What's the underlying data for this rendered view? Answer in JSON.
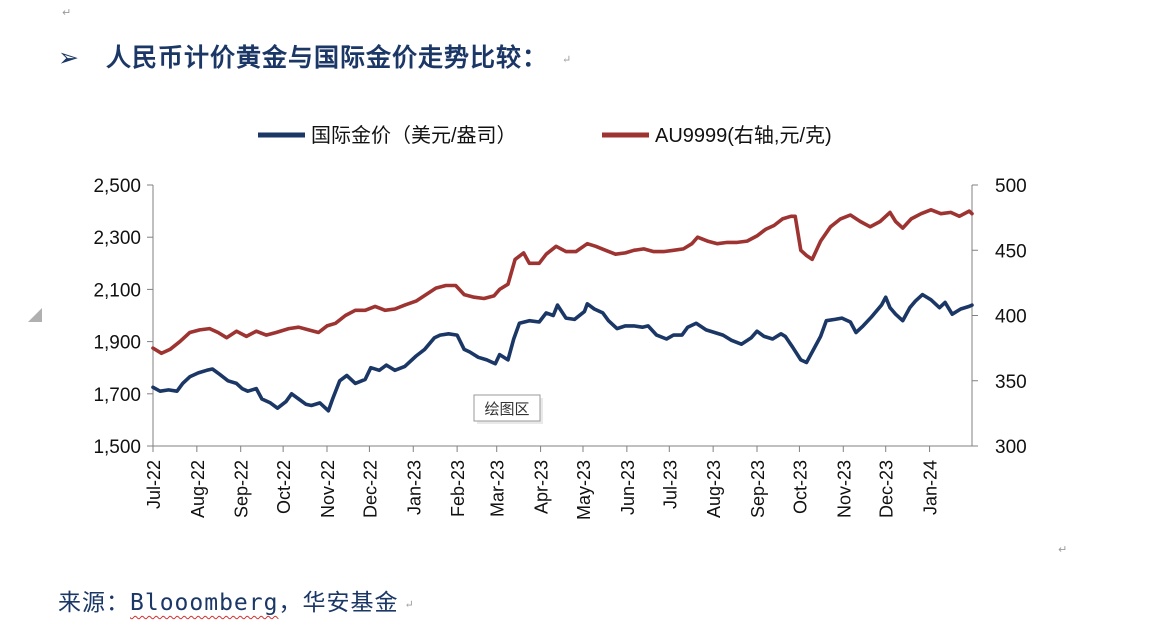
{
  "heading": {
    "bullet": "➢",
    "title": "人民币计价黄金与国际金价走势比较："
  },
  "source": {
    "prefix": "来源：",
    "brand": "Blooomberg",
    "suffix": "，华安基金"
  },
  "marks": {
    "paragraph": "↵"
  },
  "tooltip": {
    "label": "绘图区"
  },
  "chart_data": {
    "type": "line",
    "title": "",
    "xlabel": "",
    "ylabel": "",
    "legend_position": "top",
    "grid": false,
    "x_range": [
      "2022-07-01",
      "2024-01-31"
    ],
    "xticks": [
      "Jul-22",
      "Aug-22",
      "Sep-22",
      "Oct-22",
      "Nov-22",
      "Dec-22",
      "Jan-23",
      "Feb-23",
      "Mar-23",
      "Apr-23",
      "May-23",
      "Jun-23",
      "Jul-23",
      "Aug-23",
      "Sep-23",
      "Oct-23",
      "Nov-23",
      "Dec-23",
      "Jan-24"
    ],
    "ylim_left": [
      1500,
      2500
    ],
    "yticks_left": [
      "1,500",
      "1,700",
      "1,900",
      "2,100",
      "2,300",
      "2,500"
    ],
    "yticks_left_values": [
      1500,
      1700,
      1900,
      2100,
      2300,
      2500
    ],
    "ylim_right": [
      300,
      500
    ],
    "yticks_right": [
      "300",
      "350",
      "400",
      "450",
      "500"
    ],
    "yticks_right_values": [
      300,
      350,
      400,
      450,
      500
    ],
    "colors": {
      "international": "#1b3766",
      "au9999": "#9e3432",
      "axis": "#808080"
    },
    "series": [
      {
        "name": "国际金价（美元/盎司）",
        "axis": "left",
        "points": [
          [
            "2022-07-01",
            1725
          ],
          [
            "2022-07-06",
            1710
          ],
          [
            "2022-07-12",
            1715
          ],
          [
            "2022-07-18",
            1710
          ],
          [
            "2022-07-22",
            1740
          ],
          [
            "2022-07-27",
            1765
          ],
          [
            "2022-08-02",
            1780
          ],
          [
            "2022-08-08",
            1790
          ],
          [
            "2022-08-12",
            1795
          ],
          [
            "2022-08-17",
            1775
          ],
          [
            "2022-08-23",
            1750
          ],
          [
            "2022-08-29",
            1740
          ],
          [
            "2022-09-02",
            1720
          ],
          [
            "2022-09-06",
            1710
          ],
          [
            "2022-09-12",
            1720
          ],
          [
            "2022-09-16",
            1680
          ],
          [
            "2022-09-22",
            1665
          ],
          [
            "2022-09-27",
            1645
          ],
          [
            "2022-10-03",
            1670
          ],
          [
            "2022-10-07",
            1700
          ],
          [
            "2022-10-12",
            1680
          ],
          [
            "2022-10-17",
            1660
          ],
          [
            "2022-10-21",
            1655
          ],
          [
            "2022-10-27",
            1665
          ],
          [
            "2022-11-02",
            1635
          ],
          [
            "2022-11-05",
            1680
          ],
          [
            "2022-11-10",
            1750
          ],
          [
            "2022-11-15",
            1770
          ],
          [
            "2022-11-21",
            1740
          ],
          [
            "2022-11-28",
            1755
          ],
          [
            "2022-12-02",
            1800
          ],
          [
            "2022-12-08",
            1790
          ],
          [
            "2022-12-13",
            1810
          ],
          [
            "2022-12-19",
            1790
          ],
          [
            "2022-12-26",
            1805
          ],
          [
            "2023-01-03",
            1845
          ],
          [
            "2023-01-09",
            1870
          ],
          [
            "2023-01-16",
            1915
          ],
          [
            "2023-01-20",
            1925
          ],
          [
            "2023-01-26",
            1930
          ],
          [
            "2023-02-01",
            1925
          ],
          [
            "2023-02-06",
            1870
          ],
          [
            "2023-02-10",
            1860
          ],
          [
            "2023-02-16",
            1840
          ],
          [
            "2023-02-22",
            1830
          ],
          [
            "2023-02-28",
            1815
          ],
          [
            "2023-03-03",
            1850
          ],
          [
            "2023-03-09",
            1830
          ],
          [
            "2023-03-13",
            1910
          ],
          [
            "2023-03-17",
            1970
          ],
          [
            "2023-03-24",
            1980
          ],
          [
            "2023-03-31",
            1975
          ],
          [
            "2023-04-05",
            2010
          ],
          [
            "2023-04-10",
            2000
          ],
          [
            "2023-04-13",
            2040
          ],
          [
            "2023-04-19",
            1990
          ],
          [
            "2023-04-25",
            1985
          ],
          [
            "2023-05-02",
            2015
          ],
          [
            "2023-05-04",
            2045
          ],
          [
            "2023-05-09",
            2025
          ],
          [
            "2023-05-15",
            2010
          ],
          [
            "2023-05-19",
            1980
          ],
          [
            "2023-05-25",
            1950
          ],
          [
            "2023-05-31",
            1960
          ],
          [
            "2023-06-06",
            1960
          ],
          [
            "2023-06-12",
            1955
          ],
          [
            "2023-06-16",
            1960
          ],
          [
            "2023-06-22",
            1925
          ],
          [
            "2023-06-29",
            1910
          ],
          [
            "2023-07-04",
            1925
          ],
          [
            "2023-07-10",
            1925
          ],
          [
            "2023-07-14",
            1955
          ],
          [
            "2023-07-20",
            1970
          ],
          [
            "2023-07-27",
            1945
          ],
          [
            "2023-08-02",
            1935
          ],
          [
            "2023-08-08",
            1925
          ],
          [
            "2023-08-14",
            1905
          ],
          [
            "2023-08-21",
            1890
          ],
          [
            "2023-08-28",
            1915
          ],
          [
            "2023-09-01",
            1940
          ],
          [
            "2023-09-06",
            1920
          ],
          [
            "2023-09-12",
            1910
          ],
          [
            "2023-09-18",
            1930
          ],
          [
            "2023-09-21",
            1920
          ],
          [
            "2023-09-26",
            1880
          ],
          [
            "2023-10-02",
            1830
          ],
          [
            "2023-10-06",
            1820
          ],
          [
            "2023-10-11",
            1870
          ],
          [
            "2023-10-16",
            1920
          ],
          [
            "2023-10-20",
            1980
          ],
          [
            "2023-10-26",
            1985
          ],
          [
            "2023-10-31",
            1990
          ],
          [
            "2023-11-06",
            1975
          ],
          [
            "2023-11-10",
            1935
          ],
          [
            "2023-11-15",
            1960
          ],
          [
            "2023-11-21",
            1995
          ],
          [
            "2023-11-28",
            2040
          ],
          [
            "2023-12-01",
            2070
          ],
          [
            "2023-12-04",
            2030
          ],
          [
            "2023-12-08",
            2005
          ],
          [
            "2023-12-13",
            1980
          ],
          [
            "2023-12-18",
            2030
          ],
          [
            "2023-12-22",
            2055
          ],
          [
            "2023-12-27",
            2080
          ],
          [
            "2024-01-02",
            2060
          ],
          [
            "2024-01-08",
            2030
          ],
          [
            "2024-01-12",
            2050
          ],
          [
            "2024-01-17",
            2005
          ],
          [
            "2024-01-23",
            2025
          ],
          [
            "2024-01-29",
            2035
          ],
          [
            "2024-01-31",
            2040
          ]
        ]
      },
      {
        "name": "AU9999(右轴,元/克)",
        "axis": "right",
        "points": [
          [
            "2022-07-01",
            375
          ],
          [
            "2022-07-07",
            371
          ],
          [
            "2022-07-13",
            374
          ],
          [
            "2022-07-20",
            380
          ],
          [
            "2022-07-27",
            387
          ],
          [
            "2022-08-03",
            389
          ],
          [
            "2022-08-10",
            390
          ],
          [
            "2022-08-16",
            387
          ],
          [
            "2022-08-22",
            383
          ],
          [
            "2022-08-29",
            388
          ],
          [
            "2022-09-05",
            384
          ],
          [
            "2022-09-12",
            388
          ],
          [
            "2022-09-19",
            385
          ],
          [
            "2022-09-26",
            387
          ],
          [
            "2022-10-05",
            390
          ],
          [
            "2022-10-12",
            391
          ],
          [
            "2022-10-19",
            389
          ],
          [
            "2022-10-26",
            387
          ],
          [
            "2022-11-01",
            392
          ],
          [
            "2022-11-07",
            394
          ],
          [
            "2022-11-14",
            400
          ],
          [
            "2022-11-21",
            404
          ],
          [
            "2022-11-28",
            404
          ],
          [
            "2022-12-05",
            407
          ],
          [
            "2022-12-12",
            404
          ],
          [
            "2022-12-19",
            405
          ],
          [
            "2022-12-26",
            408
          ],
          [
            "2023-01-03",
            411
          ],
          [
            "2023-01-10",
            416
          ],
          [
            "2023-01-17",
            421
          ],
          [
            "2023-01-24",
            423
          ],
          [
            "2023-01-31",
            423
          ],
          [
            "2023-02-06",
            416
          ],
          [
            "2023-02-13",
            414
          ],
          [
            "2023-02-20",
            413
          ],
          [
            "2023-02-27",
            415
          ],
          [
            "2023-03-03",
            420
          ],
          [
            "2023-03-09",
            424
          ],
          [
            "2023-03-14",
            443
          ],
          [
            "2023-03-20",
            448
          ],
          [
            "2023-03-24",
            440
          ],
          [
            "2023-03-31",
            440
          ],
          [
            "2023-04-05",
            447
          ],
          [
            "2023-04-12",
            453
          ],
          [
            "2023-04-19",
            449
          ],
          [
            "2023-04-26",
            449
          ],
          [
            "2023-05-04",
            455
          ],
          [
            "2023-05-10",
            453
          ],
          [
            "2023-05-17",
            450
          ],
          [
            "2023-05-24",
            447
          ],
          [
            "2023-05-31",
            448
          ],
          [
            "2023-06-06",
            450
          ],
          [
            "2023-06-13",
            451
          ],
          [
            "2023-06-20",
            449
          ],
          [
            "2023-06-27",
            449
          ],
          [
            "2023-07-04",
            450
          ],
          [
            "2023-07-11",
            451
          ],
          [
            "2023-07-17",
            455
          ],
          [
            "2023-07-21",
            460
          ],
          [
            "2023-07-28",
            457
          ],
          [
            "2023-08-04",
            455
          ],
          [
            "2023-08-11",
            456
          ],
          [
            "2023-08-18",
            456
          ],
          [
            "2023-08-25",
            457
          ],
          [
            "2023-09-01",
            461
          ],
          [
            "2023-09-07",
            466
          ],
          [
            "2023-09-13",
            469
          ],
          [
            "2023-09-19",
            474
          ],
          [
            "2023-09-25",
            476
          ],
          [
            "2023-09-28",
            476
          ],
          [
            "2023-10-02",
            450
          ],
          [
            "2023-10-06",
            446
          ],
          [
            "2023-10-10",
            443
          ],
          [
            "2023-10-16",
            457
          ],
          [
            "2023-10-23",
            468
          ],
          [
            "2023-10-30",
            474
          ],
          [
            "2023-11-06",
            477
          ],
          [
            "2023-11-13",
            472
          ],
          [
            "2023-11-20",
            468
          ],
          [
            "2023-11-27",
            472
          ],
          [
            "2023-12-04",
            479
          ],
          [
            "2023-12-08",
            472
          ],
          [
            "2023-12-13",
            467
          ],
          [
            "2023-12-19",
            474
          ],
          [
            "2023-12-26",
            478
          ],
          [
            "2024-01-02",
            481
          ],
          [
            "2024-01-09",
            478
          ],
          [
            "2024-01-16",
            479
          ],
          [
            "2024-01-22",
            476
          ],
          [
            "2024-01-29",
            480
          ],
          [
            "2024-01-31",
            478
          ]
        ]
      }
    ]
  }
}
